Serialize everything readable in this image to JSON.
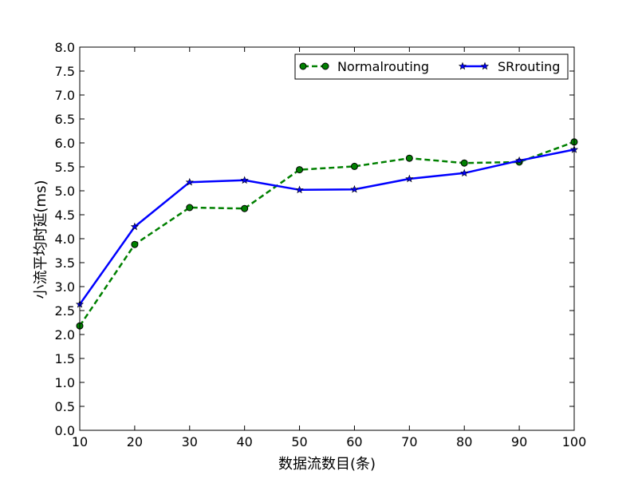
{
  "chart_data": {
    "type": "line",
    "xlabel": "数据流数目(条)",
    "ylabel": "小流平均时延(ms)",
    "xlim": [
      10,
      100
    ],
    "ylim": [
      0,
      8
    ],
    "x": [
      10,
      20,
      30,
      40,
      50,
      60,
      70,
      80,
      90,
      100
    ],
    "xticks": [
      "10",
      "20",
      "30",
      "40",
      "50",
      "60",
      "70",
      "80",
      "90",
      "100"
    ],
    "yticks": [
      "0.0",
      "0.5",
      "1.0",
      "1.5",
      "2.0",
      "2.5",
      "3.0",
      "3.5",
      "4.0",
      "4.5",
      "5.0",
      "5.5",
      "6.0",
      "6.5",
      "7.0",
      "7.5",
      "8.0"
    ],
    "grid": false,
    "legend_position": "top-right",
    "series": [
      {
        "name": "Normalrouting",
        "values": [
          2.18,
          3.88,
          4.65,
          4.63,
          5.44,
          5.51,
          5.68,
          5.58,
          5.6,
          6.02
        ],
        "color": "#008000",
        "line_style": "dashed",
        "marker": "circle"
      },
      {
        "name": "SRrouting",
        "values": [
          2.63,
          4.25,
          5.18,
          5.22,
          5.02,
          5.03,
          5.25,
          5.37,
          5.63,
          5.86
        ],
        "color": "#0000ff",
        "line_style": "solid",
        "marker": "star"
      }
    ]
  }
}
